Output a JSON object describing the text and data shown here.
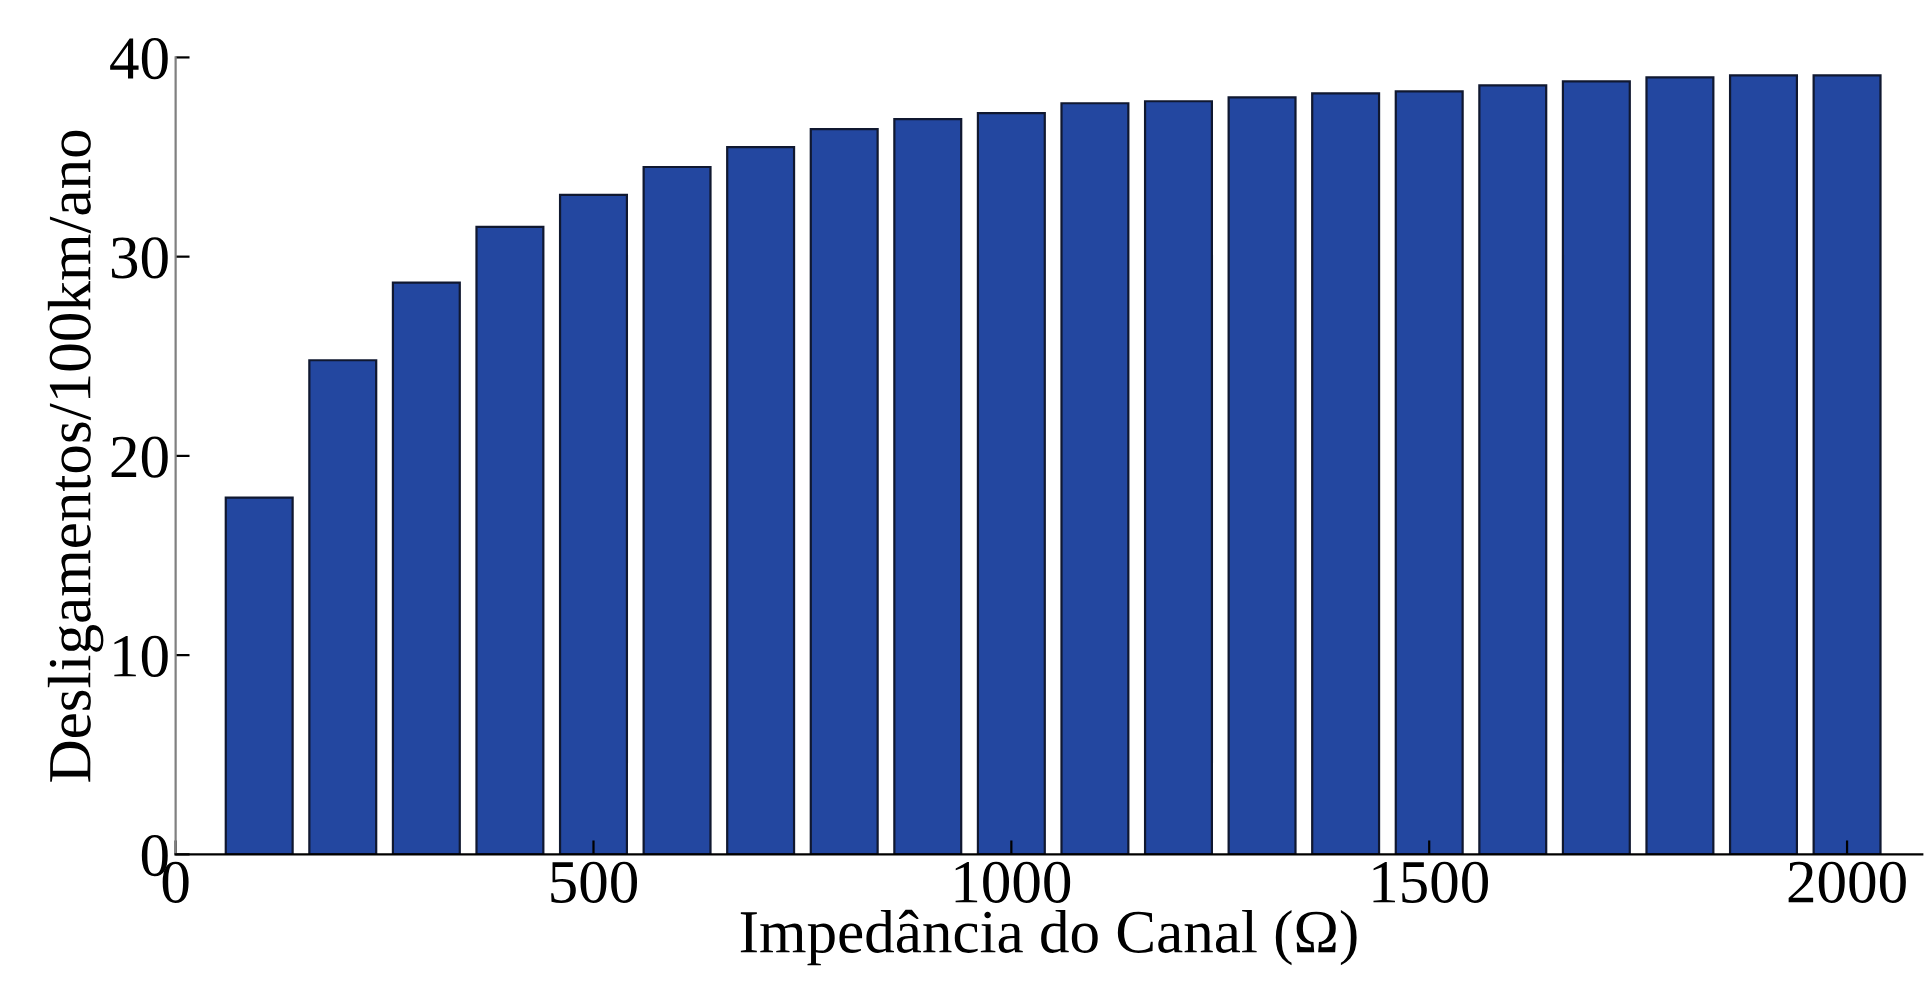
{
  "chart_data": {
    "type": "bar",
    "xlabel": "Impedância do Canal (Ω)",
    "ylabel": "Desligamentos/100km/ano",
    "x": [
      100,
      200,
      300,
      400,
      500,
      600,
      700,
      800,
      900,
      1000,
      1100,
      1200,
      1300,
      1400,
      1500,
      1600,
      1700,
      1800,
      1900,
      2000
    ],
    "values": [
      17.9,
      24.8,
      28.7,
      31.5,
      33.1,
      34.5,
      35.5,
      36.4,
      36.9,
      37.2,
      37.7,
      37.8,
      38.0,
      38.2,
      38.3,
      38.6,
      38.8,
      39.0,
      39.1,
      39.1
    ],
    "color": "#2347a0",
    "xlim": [
      0,
      2090
    ],
    "xticks": [
      0,
      500,
      1000,
      1500,
      2000
    ],
    "ylim": [
      0,
      40
    ],
    "yticks": [
      0,
      10,
      20,
      30,
      40
    ],
    "grid": false,
    "legend": false
  }
}
